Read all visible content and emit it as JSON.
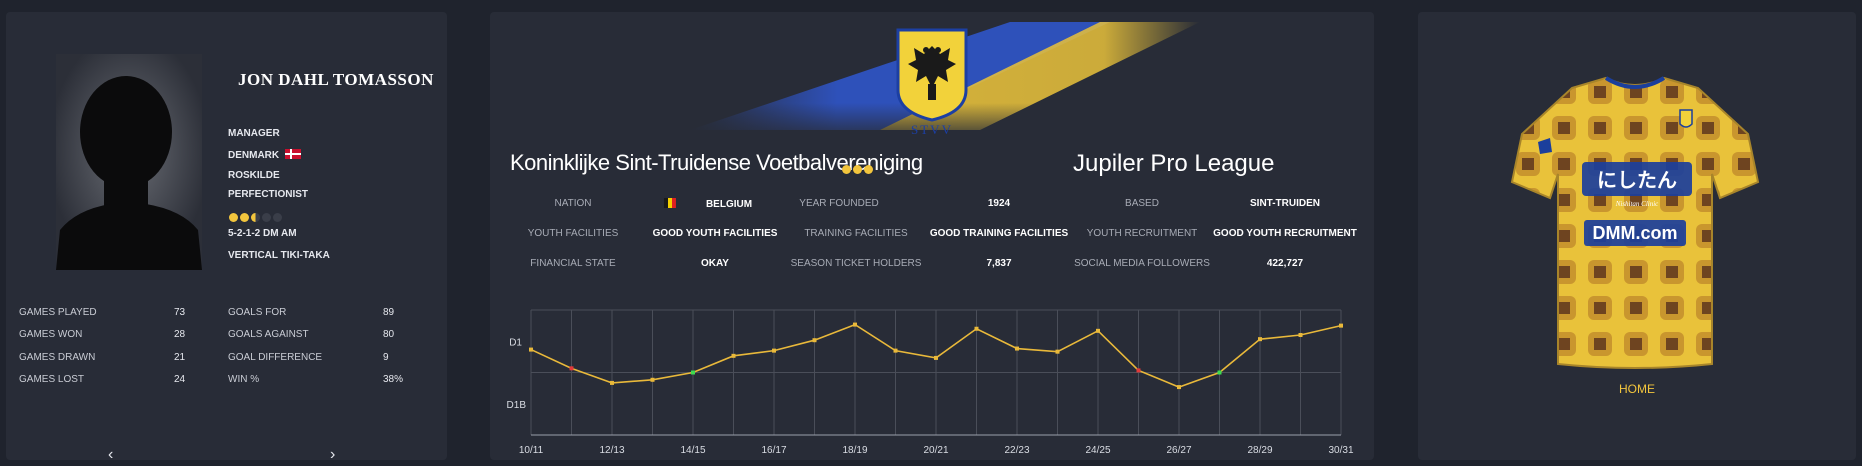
{
  "manager": {
    "name": "JON DAHL TOMASSON",
    "role": "MANAGER",
    "nationality": "DENMARK",
    "hometown": "ROSKILDE",
    "personality": "PERFECTIONIST",
    "rating": 2.5,
    "rating_max": 5,
    "formation": "5-2-1-2 DM AM",
    "style": "VERTICAL TIKI-TAKA",
    "stats_left": [
      {
        "label": "GAMES PLAYED",
        "value": "73"
      },
      {
        "label": "GAMES WON",
        "value": "28"
      },
      {
        "label": "GAMES DRAWN",
        "value": "21"
      },
      {
        "label": "GAMES LOST",
        "value": "24"
      }
    ],
    "stats_right": [
      {
        "label": "GOALS FOR",
        "value": "89"
      },
      {
        "label": "GOALS AGAINST",
        "value": "80"
      },
      {
        "label": "GOAL DIFFERENCE",
        "value": "9"
      },
      {
        "label": "WIN %",
        "value": "38%"
      }
    ],
    "prev_arrow": "‹",
    "next_arrow": "›"
  },
  "club": {
    "name": "Koninklijke Sint-Truidense Voetbalvereniging",
    "reputation_stars": 3,
    "league": "Jupiler Pro League",
    "crest_lettering": "STVV",
    "info": [
      {
        "label": "NATION",
        "value": "BELGIUM"
      },
      {
        "label": "YEAR FOUNDED",
        "value": "1924"
      },
      {
        "label": "BASED",
        "value": "SINT-TRUIDEN"
      },
      {
        "label": "YOUTH FACILITIES",
        "value": "GOOD YOUTH FACILITIES"
      },
      {
        "label": "TRAINING FACILITIES",
        "value": "GOOD TRAINING FACILITIES"
      },
      {
        "label": "YOUTH RECRUITMENT",
        "value": "GOOD YOUTH RECRUITMENT"
      },
      {
        "label": "FINANCIAL STATE",
        "value": "OKAY"
      },
      {
        "label": "SEASON TICKET HOLDERS",
        "value": "7,837"
      },
      {
        "label": "SOCIAL MEDIA FOLLOWERS",
        "value": "422,727"
      }
    ]
  },
  "chart_data": {
    "type": "line",
    "title": "",
    "xlabel": "",
    "ylabel": "",
    "y_tick_labels": [
      "D1",
      "D1B"
    ],
    "x_tick_labels": [
      "10/11",
      "12/13",
      "14/15",
      "16/17",
      "18/19",
      "20/21",
      "22/23",
      "24/25",
      "26/27",
      "28/29",
      "30/31"
    ],
    "x": [
      "10/11",
      "11/12",
      "12/13",
      "13/14",
      "14/15",
      "15/16",
      "16/17",
      "17/18",
      "18/19",
      "19/20",
      "20/21",
      "21/22",
      "22/23",
      "23/24",
      "24/25",
      "25/26",
      "26/27",
      "27/28",
      "28/29",
      "29/30",
      "30/31"
    ],
    "league_position": [
      0.82,
      0.64,
      0.5,
      0.53,
      0.6,
      0.76,
      0.81,
      0.91,
      1.06,
      0.81,
      0.74,
      1.02,
      0.83,
      0.8,
      1.0,
      0.62,
      0.46,
      0.6,
      0.92,
      0.96,
      1.05
    ],
    "markers": {
      "relegated": [
        "11/12",
        "25/26"
      ],
      "promoted": [
        "14/15",
        "27/28"
      ]
    },
    "colors": {
      "line": "#e9b93a",
      "relegated": "#e23a3a",
      "promoted": "#3ddc4f",
      "grid": "#4a4e59"
    }
  },
  "kit": {
    "label": "HOME",
    "sponsor_top": "にしたん",
    "sponsor_sub": "Nishitan Clinic",
    "sponsor_main": "DMM.com",
    "colors": {
      "primary": "#e9c23a",
      "pattern": "#8a5a2a",
      "sponsor": "#1b3f9c"
    }
  },
  "colors": {
    "accent": "#f2c53d",
    "background": "#1f232d",
    "panel": "#282c37"
  }
}
